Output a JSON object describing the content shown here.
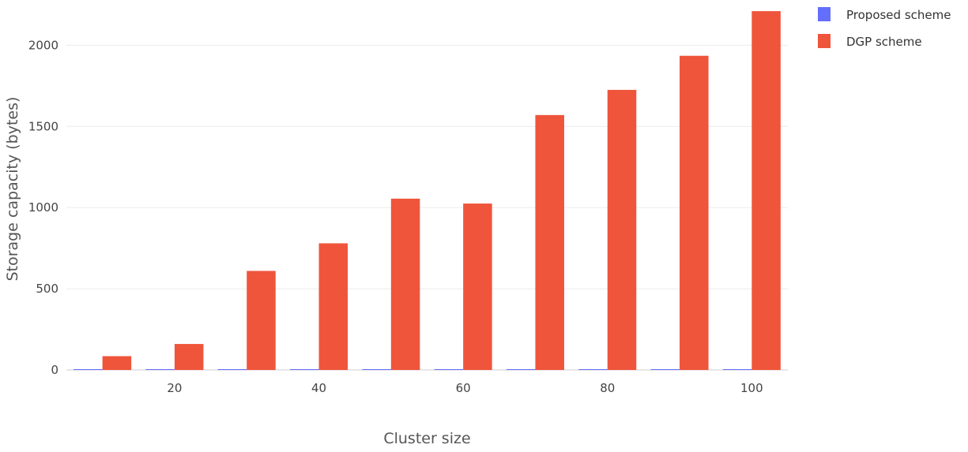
{
  "chart_data": {
    "type": "bar",
    "title": "",
    "xlabel": "Cluster size",
    "ylabel": "Storage capacity (bytes)",
    "x": [
      10,
      20,
      30,
      40,
      50,
      60,
      70,
      80,
      90,
      100
    ],
    "x_ticks": [
      20,
      40,
      60,
      80,
      100
    ],
    "y_ticks": [
      0,
      500,
      1000,
      1500,
      2000
    ],
    "xlim": [
      5,
      105
    ],
    "ylim": [
      0,
      2230
    ],
    "grid": true,
    "legend_position": "top-right",
    "series": [
      {
        "name": "Proposed scheme",
        "color": "#636efa",
        "values": [
          5,
          5,
          5,
          5,
          5,
          5,
          5,
          5,
          5,
          5
        ]
      },
      {
        "name": "DGP scheme",
        "color": "#ef553b",
        "values": [
          85,
          160,
          610,
          780,
          1055,
          1025,
          1570,
          1725,
          1935,
          2210
        ]
      }
    ]
  }
}
